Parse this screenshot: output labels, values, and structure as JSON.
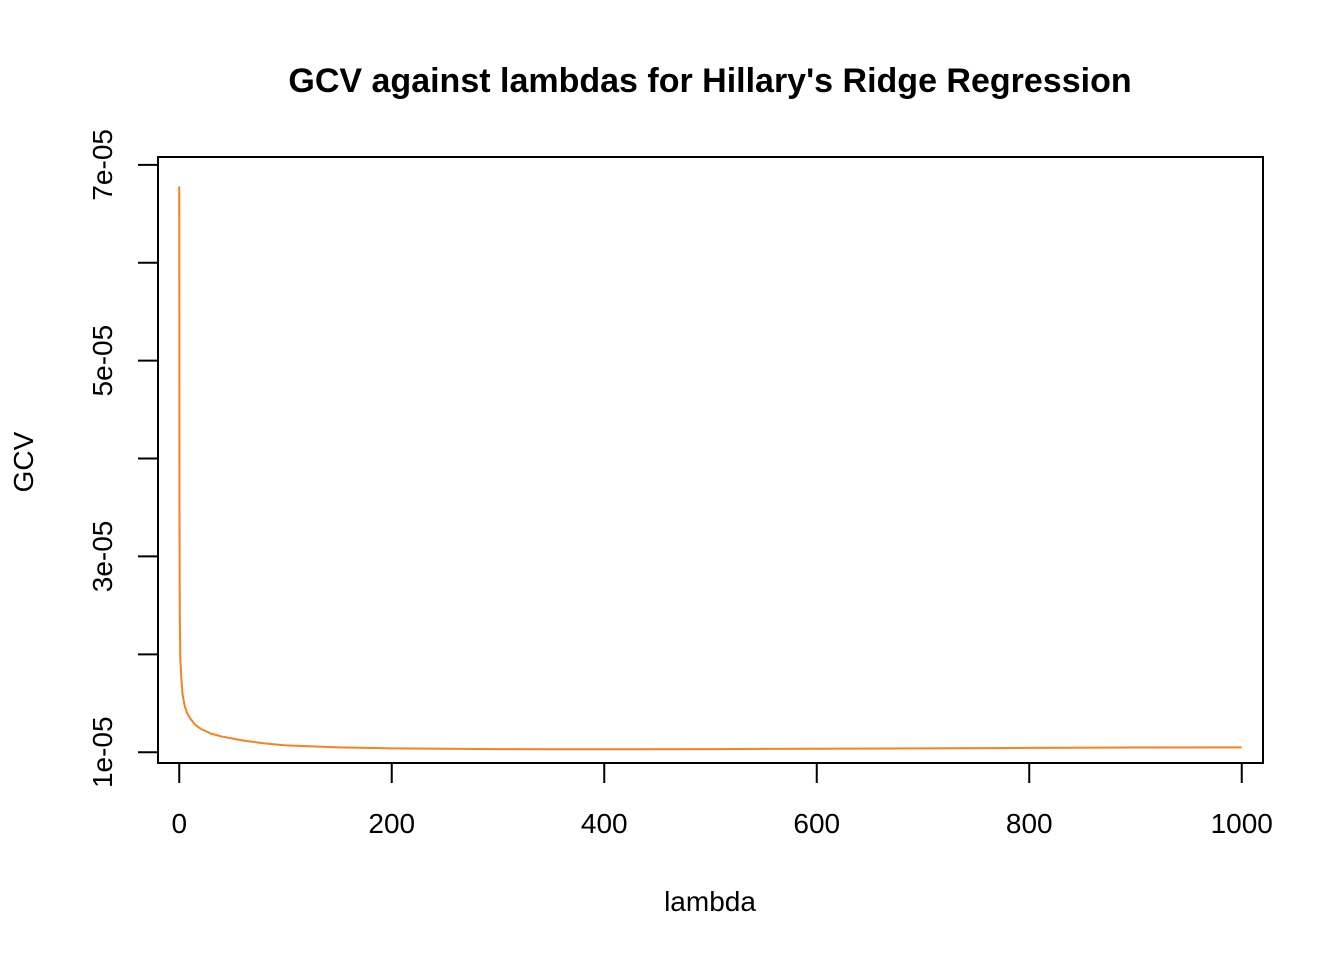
{
  "chart_data": {
    "type": "line",
    "title": "GCV against lambdas for Hillary's Ridge Regression",
    "xlabel": "lambda",
    "ylabel": "GCV",
    "xlim": [
      -20,
      1020
    ],
    "ylim": [
      8.9e-06,
      7.08e-05
    ],
    "x_ticks": [
      0,
      200,
      400,
      600,
      800,
      1000
    ],
    "x_tick_labels": [
      "0",
      "200",
      "400",
      "600",
      "800",
      "1000"
    ],
    "y_ticks": [
      1e-05,
      2e-05,
      3e-05,
      4e-05,
      5e-05,
      6e-05,
      7e-05
    ],
    "y_tick_labels": [
      "1e-05",
      "",
      "3e-05",
      "",
      "5e-05",
      "",
      "7e-05"
    ],
    "grid": false,
    "series": [
      {
        "color": "#F5821F",
        "x": [
          0,
          0.2,
          0.5,
          1,
          2,
          3,
          5,
          7,
          10,
          15,
          20,
          30,
          40,
          50,
          60,
          80,
          100,
          125,
          150,
          200,
          250,
          300,
          350,
          400,
          500,
          600,
          700,
          800,
          900,
          1000
        ],
        "y": [
          6.78e-05,
          3.5e-05,
          2.4e-05,
          1.95e-05,
          1.75e-05,
          1.6e-05,
          1.48e-05,
          1.41e-05,
          1.35e-05,
          1.28e-05,
          1.24e-05,
          1.19e-05,
          1.16e-05,
          1.14e-05,
          1.12e-05,
          1.09e-05,
          1.07e-05,
          1.06e-05,
          1.05e-05,
          1.04e-05,
          1.035e-05,
          1.032e-05,
          1.03e-05,
          1.03e-05,
          1.032e-05,
          1.036e-05,
          1.04e-05,
          1.044e-05,
          1.048e-05,
          1.05e-05
        ]
      }
    ]
  }
}
